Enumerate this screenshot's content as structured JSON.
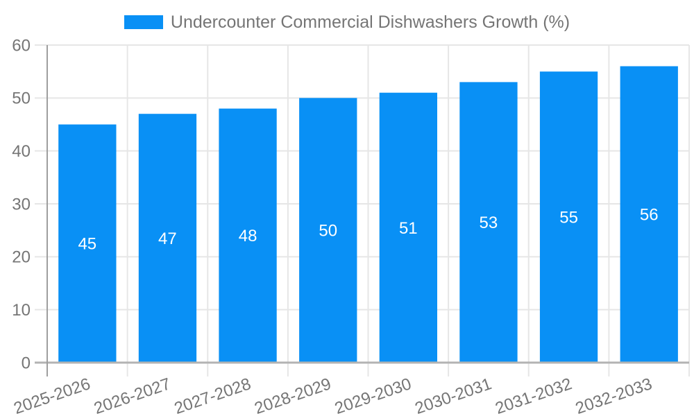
{
  "legend": {
    "label": "Undercounter Commercial Dishwashers Growth (%)"
  },
  "chart_data": {
    "type": "bar",
    "title": "Undercounter Commercial Dishwashers Growth (%)",
    "categories": [
      "2025-2026",
      "2026-2027",
      "2027-2028",
      "2028-2029",
      "2029-2030",
      "2030-2031",
      "2031-2032",
      "2032-2033"
    ],
    "values": [
      45,
      47,
      48,
      50,
      51,
      53,
      55,
      56
    ],
    "xlabel": "",
    "ylabel": "",
    "ylim": [
      0,
      60
    ],
    "yticks": [
      0,
      10,
      20,
      30,
      40,
      50,
      60
    ],
    "grid": true,
    "legend_position": "top",
    "x_label_rotation_deg": -19,
    "colors": {
      "bar": "#0990f5",
      "value_label": "#ffffff",
      "axis_text": "#757575",
      "legend_text": "#757575",
      "gridline": "#e6e6e6",
      "axis_line": "#9e9e9e",
      "baseline": "#b3b3b3"
    }
  }
}
